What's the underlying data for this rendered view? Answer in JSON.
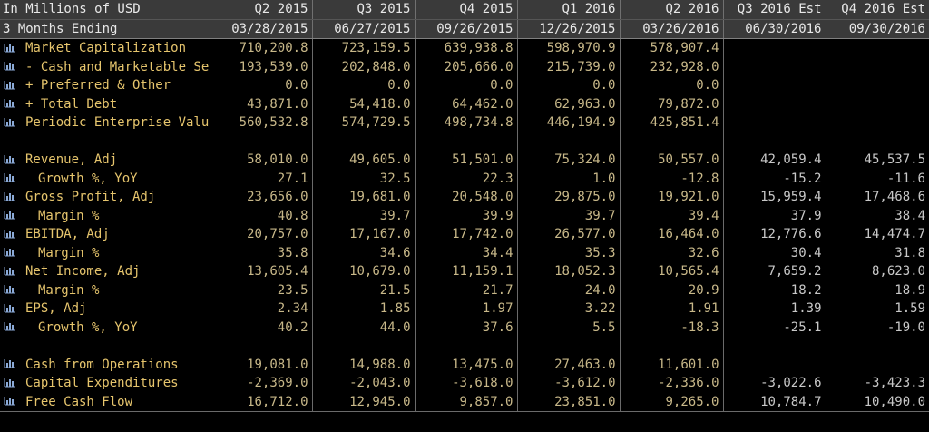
{
  "header": {
    "corner_top": "In Millions of USD",
    "corner_bottom": "3 Months Ending",
    "periods": [
      {
        "label": "Q2 2015",
        "date": "03/28/2015"
      },
      {
        "label": "Q3 2015",
        "date": "06/27/2015"
      },
      {
        "label": "Q4 2015",
        "date": "09/26/2015"
      },
      {
        "label": "Q1 2016",
        "date": "12/26/2015"
      },
      {
        "label": "Q2 2016",
        "date": "03/26/2016"
      },
      {
        "label": "Q3 2016 Est",
        "date": "06/30/2016"
      },
      {
        "label": "Q4 2016 Est",
        "date": "09/30/2016"
      }
    ]
  },
  "icon": "bar-chart-icon",
  "colors": {
    "label": "#e6c56d",
    "value": "#c8b889",
    "estimate": "#c8c8c8",
    "header_bg": "#3a3a3a"
  },
  "rows": [
    {
      "label": "Market Capitalization",
      "indent": false,
      "values": [
        "710,200.8",
        "723,159.5",
        "639,938.8",
        "598,970.9",
        "578,907.4",
        "",
        ""
      ]
    },
    {
      "label": "- Cash and Marketable Sec",
      "indent": false,
      "values": [
        "193,539.0",
        "202,848.0",
        "205,666.0",
        "215,739.0",
        "232,928.0",
        "",
        ""
      ]
    },
    {
      "label": "+ Preferred & Other",
      "indent": false,
      "values": [
        "0.0",
        "0.0",
        "0.0",
        "0.0",
        "0.0",
        "",
        ""
      ]
    },
    {
      "label": "+ Total Debt",
      "indent": false,
      "values": [
        "43,871.0",
        "54,418.0",
        "64,462.0",
        "62,963.0",
        "79,872.0",
        "",
        ""
      ]
    },
    {
      "label": "Periodic Enterprise Value",
      "indent": false,
      "values": [
        "560,532.8",
        "574,729.5",
        "498,734.8",
        "446,194.9",
        "425,851.4",
        "",
        ""
      ]
    },
    {
      "blank": true
    },
    {
      "label": "Revenue, Adj",
      "indent": false,
      "values": [
        "58,010.0",
        "49,605.0",
        "51,501.0",
        "75,324.0",
        "50,557.0",
        "42,059.4",
        "45,537.5"
      ]
    },
    {
      "label": "Growth %, YoY",
      "indent": true,
      "values": [
        "27.1",
        "32.5",
        "22.3",
        "1.0",
        "-12.8",
        "-15.2",
        "-11.6"
      ]
    },
    {
      "label": "Gross Profit, Adj",
      "indent": false,
      "values": [
        "23,656.0",
        "19,681.0",
        "20,548.0",
        "29,875.0",
        "19,921.0",
        "15,959.4",
        "17,468.6"
      ]
    },
    {
      "label": "Margin %",
      "indent": true,
      "values": [
        "40.8",
        "39.7",
        "39.9",
        "39.7",
        "39.4",
        "37.9",
        "38.4"
      ]
    },
    {
      "label": "EBITDA, Adj",
      "indent": false,
      "values": [
        "20,757.0",
        "17,167.0",
        "17,742.0",
        "26,577.0",
        "16,464.0",
        "12,776.6",
        "14,474.7"
      ]
    },
    {
      "label": "Margin %",
      "indent": true,
      "values": [
        "35.8",
        "34.6",
        "34.4",
        "35.3",
        "32.6",
        "30.4",
        "31.8"
      ]
    },
    {
      "label": "Net Income, Adj",
      "indent": false,
      "values": [
        "13,605.4",
        "10,679.0",
        "11,159.1",
        "18,052.3",
        "10,565.4",
        "7,659.2",
        "8,623.0"
      ]
    },
    {
      "label": "Margin %",
      "indent": true,
      "values": [
        "23.5",
        "21.5",
        "21.7",
        "24.0",
        "20.9",
        "18.2",
        "18.9"
      ]
    },
    {
      "label": "EPS, Adj",
      "indent": false,
      "values": [
        "2.34",
        "1.85",
        "1.97",
        "3.22",
        "1.91",
        "1.39",
        "1.59"
      ]
    },
    {
      "label": "Growth %, YoY",
      "indent": true,
      "values": [
        "40.2",
        "44.0",
        "37.6",
        "5.5",
        "-18.3",
        "-25.1",
        "-19.0"
      ]
    },
    {
      "blank": true
    },
    {
      "label": "Cash from Operations",
      "indent": false,
      "values": [
        "19,081.0",
        "14,988.0",
        "13,475.0",
        "27,463.0",
        "11,601.0",
        "",
        ""
      ]
    },
    {
      "label": "Capital Expenditures",
      "indent": false,
      "values": [
        "-2,369.0",
        "-2,043.0",
        "-3,618.0",
        "-3,612.0",
        "-2,336.0",
        "-3,022.6",
        "-3,423.3"
      ]
    },
    {
      "label": "Free Cash Flow",
      "indent": false,
      "values": [
        "16,712.0",
        "12,945.0",
        "9,857.0",
        "23,851.0",
        "9,265.0",
        "10,784.7",
        "10,490.0"
      ]
    }
  ]
}
